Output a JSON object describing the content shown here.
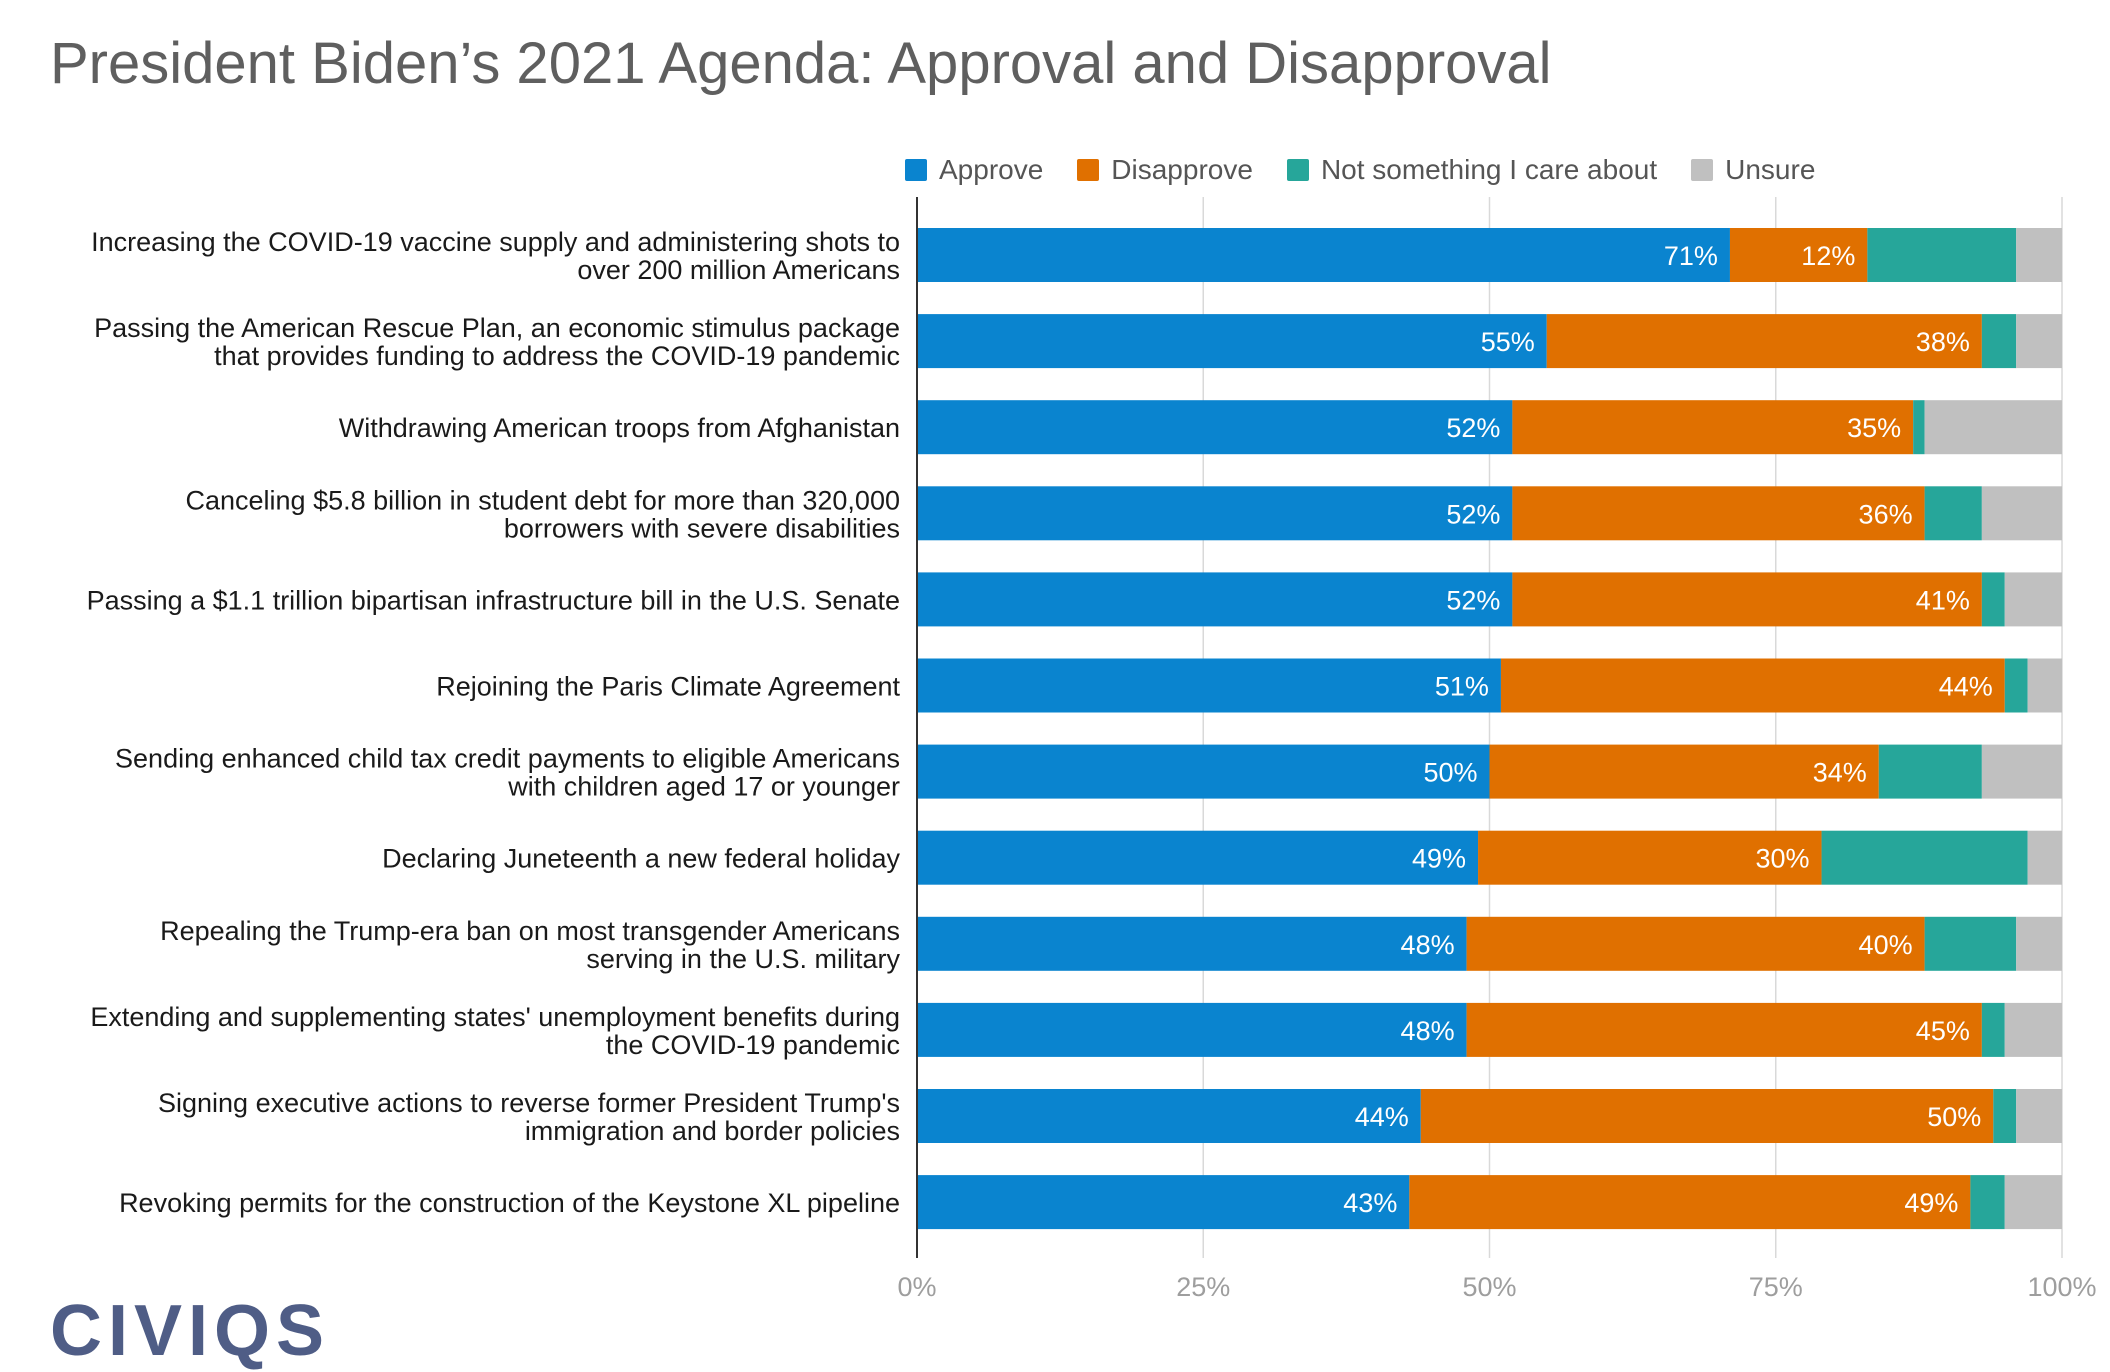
{
  "chart_data": {
    "type": "bar",
    "orientation": "horizontal",
    "stacked": true,
    "title": "President Biden’s 2021 Agenda: Approval and Disapproval",
    "xlim": [
      0,
      100
    ],
    "x_ticks": [
      "0%",
      "25%",
      "50%",
      "75%",
      "100%"
    ],
    "legend_position": "top",
    "categories": [
      [
        "Increasing the COVID-19 vaccine supply and administering shots to",
        "over 200 million Americans"
      ],
      [
        "Passing the American Rescue Plan, an economic stimulus package",
        "that provides funding to address the COVID-19 pandemic"
      ],
      [
        "Withdrawing American troops from Afghanistan"
      ],
      [
        "Canceling $5.8 billion in student debt for more than 320,000",
        "borrowers with severe disabilities"
      ],
      [
        "Passing a $1.1 trillion bipartisan infrastructure bill in the U.S. Senate"
      ],
      [
        "Rejoining the Paris Climate Agreement"
      ],
      [
        "Sending enhanced child tax credit payments to eligible Americans",
        "with children aged 17 or younger"
      ],
      [
        "Declaring Juneteenth a new federal holiday"
      ],
      [
        "Repealing the Trump-era ban on most transgender Americans",
        "serving in the U.S. military"
      ],
      [
        "Extending and supplementing states' unemployment benefits during",
        "the COVID-19 pandemic"
      ],
      [
        "Signing executive actions to reverse former President Trump's",
        "immigration and border policies"
      ],
      [
        "Revoking permits for the construction of the Keystone XL pipeline"
      ]
    ],
    "series": [
      {
        "name": "Approve",
        "color": "#0a84cf",
        "labeled": true,
        "values": [
          71,
          55,
          52,
          52,
          52,
          51,
          50,
          49,
          48,
          48,
          44,
          43
        ]
      },
      {
        "name": "Disapprove",
        "color": "#e07000",
        "labeled": true,
        "values": [
          12,
          38,
          35,
          36,
          41,
          44,
          34,
          30,
          40,
          45,
          50,
          49
        ]
      },
      {
        "name": "Not something I care about",
        "color": "#26a69a",
        "labeled": false,
        "values": [
          13,
          3,
          1,
          5,
          2,
          2,
          9,
          18,
          8,
          2,
          2,
          3
        ]
      },
      {
        "name": "Unsure",
        "color": "#c0c0c0",
        "labeled": false,
        "values": [
          4,
          4,
          12,
          7,
          5,
          3,
          7,
          3,
          4,
          5,
          4,
          5
        ]
      }
    ],
    "data_label_suffix": "%"
  },
  "brand": {
    "logo_text": "CIVIQS"
  },
  "colors": {
    "title": "#5f5f5f",
    "axis_text": "#9e9e9e",
    "grid": "#d9d9d9",
    "logo": "#4f5d86"
  }
}
